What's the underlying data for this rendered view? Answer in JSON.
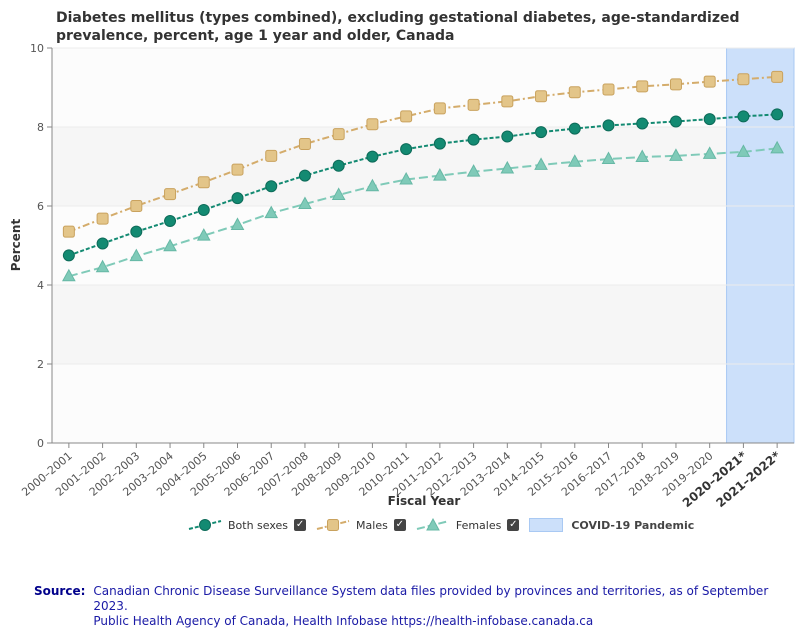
{
  "chart_data": {
    "type": "line",
    "title": "Diabetes mellitus (types combined), excluding gestational diabetes, age-standardized prevalence, percent, age 1 year and older, Canada",
    "xlabel": "Fiscal Year",
    "ylabel": "Percent",
    "ylim": [
      0,
      10
    ],
    "yticks": [
      "0",
      "2",
      "4",
      "6",
      "8",
      "10"
    ],
    "categories": [
      "2000–2001",
      "2001–2002",
      "2002–2003",
      "2003–2004",
      "2004–2005",
      "2005–2006",
      "2006–2007",
      "2007–2008",
      "2008–2009",
      "2009–2010",
      "2010–2011",
      "2011–2012",
      "2012–2013",
      "2013–2014",
      "2014–2015",
      "2015–2016",
      "2016–2017",
      "2017–2018",
      "2018–2019",
      "2019–2020",
      "2020–2021*",
      "2021–2022*"
    ],
    "series": [
      {
        "name": "Both sexes",
        "color": "#138a72",
        "marker": "circle",
        "values": [
          4.75,
          5.05,
          5.35,
          5.62,
          5.9,
          6.2,
          6.5,
          6.77,
          7.02,
          7.25,
          7.44,
          7.58,
          7.68,
          7.76,
          7.87,
          7.96,
          8.04,
          8.09,
          8.14,
          8.2,
          8.27,
          8.32
        ]
      },
      {
        "name": "Males",
        "color": "#d4ac6b",
        "marker": "square",
        "values": [
          5.35,
          5.68,
          6.0,
          6.3,
          6.6,
          6.92,
          7.27,
          7.57,
          7.82,
          8.07,
          8.27,
          8.47,
          8.56,
          8.65,
          8.78,
          8.88,
          8.95,
          9.03,
          9.08,
          9.15,
          9.21,
          9.27
        ]
      },
      {
        "name": "Females",
        "color": "#7fcab8",
        "marker": "triangle",
        "values": [
          4.22,
          4.45,
          4.73,
          4.98,
          5.25,
          5.52,
          5.82,
          6.05,
          6.28,
          6.5,
          6.67,
          6.77,
          6.87,
          6.95,
          7.04,
          7.12,
          7.19,
          7.24,
          7.27,
          7.32,
          7.37,
          7.46
        ]
      }
    ],
    "covid_highlight": {
      "label": "COVID-19 Pandemic",
      "from_category": "2020–2021*",
      "to_category": "2021–2022*",
      "color": "#cce0fa"
    },
    "legend_position": "bottom",
    "grid": true
  },
  "source": {
    "label": "Source:",
    "line1": "Canadian Chronic Disease Surveillance System data files provided by provinces and territories, as of September 2023.",
    "line2": "Public Health Agency of Canada, Health Infobase https://health-infobase.canada.ca"
  },
  "legend": {
    "check_glyph": "✓"
  }
}
